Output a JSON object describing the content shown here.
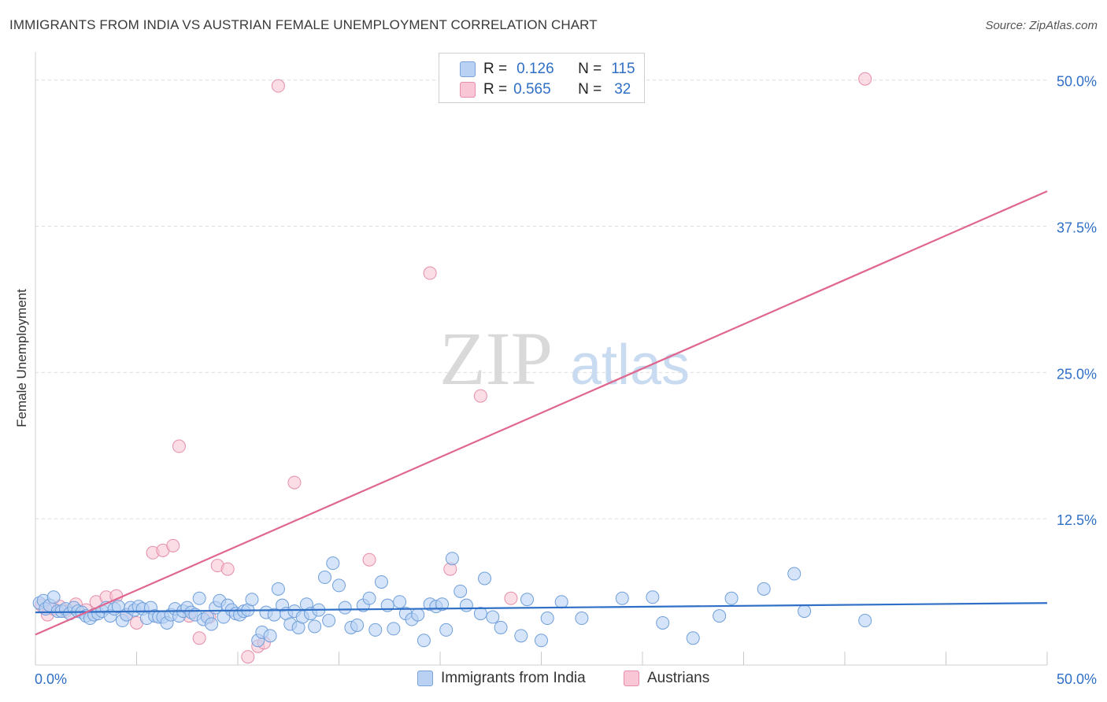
{
  "title": "IMMIGRANTS FROM INDIA VS AUSTRIAN FEMALE UNEMPLOYMENT CORRELATION CHART",
  "source": "Source: ZipAtlas.com",
  "watermark": {
    "zip": "ZIP",
    "atlas": "atlas"
  },
  "legend": {
    "rows": [
      {
        "r_label": "R =",
        "r_value": "0.126",
        "n_label": "N =",
        "n_value": "115"
      },
      {
        "r_label": "R =",
        "r_value": "0.565",
        "n_label": "N =",
        "n_value": "32"
      }
    ]
  },
  "bottom_legend": {
    "series_a": "Immigrants from India",
    "series_b": "Austrians"
  },
  "colors": {
    "blue_fill": "#b9d2f3",
    "blue_stroke": "#6f9fda",
    "blue_line": "#2f6fc6",
    "pink_fill": "#f8c6d4",
    "pink_stroke": "#e58ea9",
    "pink_line": "#e0668f",
    "tick_text": "#2f6fc6"
  },
  "chart_data": {
    "type": "scatter",
    "title": "IMMIGRANTS FROM INDIA VS AUSTRIAN FEMALE UNEMPLOYMENT CORRELATION CHART",
    "xlabel": "",
    "ylabel": "Female Unemployment",
    "xlim": [
      0,
      50
    ],
    "ylim": [
      0,
      52
    ],
    "x_tick_labels": [
      {
        "value": 0,
        "label": "0.0%"
      },
      {
        "value": 50,
        "label": "50.0%"
      }
    ],
    "y_tick_labels": [
      {
        "value": 12.5,
        "label": "12.5%"
      },
      {
        "value": 25,
        "label": "25.0%"
      },
      {
        "value": 37.5,
        "label": "37.5%"
      },
      {
        "value": 50,
        "label": "50.0%"
      }
    ],
    "series": [
      {
        "name": "Immigrants from India",
        "R": 0.126,
        "N": 115,
        "trend": {
          "x": [
            0,
            50
          ],
          "y": [
            4.5,
            5.3
          ]
        },
        "points": [
          [
            0.2,
            5.3
          ],
          [
            0.4,
            5.5
          ],
          [
            0.5,
            4.8
          ],
          [
            0.7,
            5.1
          ],
          [
            0.9,
            5.8
          ],
          [
            1.1,
            4.6
          ],
          [
            1.3,
            4.6
          ],
          [
            1.5,
            4.8
          ],
          [
            1.7,
            4.4
          ],
          [
            1.9,
            4.9
          ],
          [
            2.1,
            4.6
          ],
          [
            2.3,
            4.5
          ],
          [
            2.5,
            4.2
          ],
          [
            2.7,
            4.0
          ],
          [
            2.9,
            4.3
          ],
          [
            3.1,
            4.4
          ],
          [
            3.3,
            4.6
          ],
          [
            3.5,
            4.9
          ],
          [
            3.7,
            4.2
          ],
          [
            3.9,
            4.8
          ],
          [
            4.1,
            5.0
          ],
          [
            4.3,
            3.8
          ],
          [
            4.5,
            4.3
          ],
          [
            4.7,
            4.9
          ],
          [
            4.9,
            4.7
          ],
          [
            5.1,
            5.0
          ],
          [
            5.3,
            4.8
          ],
          [
            5.5,
            4.0
          ],
          [
            5.7,
            4.9
          ],
          [
            5.9,
            4.2
          ],
          [
            6.1,
            4.1
          ],
          [
            6.3,
            4.1
          ],
          [
            6.5,
            3.6
          ],
          [
            6.7,
            4.3
          ],
          [
            6.9,
            4.8
          ],
          [
            7.1,
            4.2
          ],
          [
            7.3,
            4.6
          ],
          [
            7.5,
            4.9
          ],
          [
            7.7,
            4.5
          ],
          [
            7.9,
            4.3
          ],
          [
            8.1,
            5.7
          ],
          [
            8.3,
            3.9
          ],
          [
            8.5,
            4.1
          ],
          [
            8.7,
            3.5
          ],
          [
            8.9,
            4.9
          ],
          [
            9.1,
            5.5
          ],
          [
            9.3,
            4.1
          ],
          [
            9.5,
            5.1
          ],
          [
            9.7,
            4.7
          ],
          [
            9.9,
            4.4
          ],
          [
            10.1,
            4.3
          ],
          [
            10.3,
            4.6
          ],
          [
            10.5,
            4.7
          ],
          [
            10.7,
            5.6
          ],
          [
            11.0,
            2.1
          ],
          [
            11.2,
            2.8
          ],
          [
            11.4,
            4.5
          ],
          [
            11.6,
            2.5
          ],
          [
            11.8,
            4.3
          ],
          [
            12.0,
            6.5
          ],
          [
            12.2,
            5.1
          ],
          [
            12.4,
            4.4
          ],
          [
            12.6,
            3.5
          ],
          [
            12.8,
            4.6
          ],
          [
            13.0,
            3.2
          ],
          [
            13.2,
            4.1
          ],
          [
            13.4,
            5.2
          ],
          [
            13.6,
            4.4
          ],
          [
            13.8,
            3.3
          ],
          [
            14.0,
            4.7
          ],
          [
            14.3,
            7.5
          ],
          [
            14.5,
            3.8
          ],
          [
            14.7,
            8.7
          ],
          [
            15.0,
            6.8
          ],
          [
            15.3,
            4.9
          ],
          [
            15.6,
            3.2
          ],
          [
            15.9,
            3.4
          ],
          [
            16.2,
            5.1
          ],
          [
            16.5,
            5.7
          ],
          [
            16.8,
            3.0
          ],
          [
            17.1,
            7.1
          ],
          [
            17.4,
            5.1
          ],
          [
            17.7,
            3.1
          ],
          [
            18.0,
            5.4
          ],
          [
            18.3,
            4.4
          ],
          [
            18.6,
            3.9
          ],
          [
            18.9,
            4.3
          ],
          [
            19.2,
            2.1
          ],
          [
            19.5,
            5.2
          ],
          [
            19.8,
            5.0
          ],
          [
            20.1,
            5.2
          ],
          [
            20.3,
            3.0
          ],
          [
            20.6,
            9.1
          ],
          [
            21.0,
            6.3
          ],
          [
            21.3,
            5.1
          ],
          [
            22.0,
            4.4
          ],
          [
            22.2,
            7.4
          ],
          [
            22.6,
            4.1
          ],
          [
            23.0,
            3.2
          ],
          [
            24.0,
            2.5
          ],
          [
            24.3,
            5.6
          ],
          [
            25.0,
            2.1
          ],
          [
            25.3,
            4.0
          ],
          [
            26.0,
            5.4
          ],
          [
            27.0,
            4.0
          ],
          [
            29.0,
            5.7
          ],
          [
            30.5,
            5.8
          ],
          [
            31.0,
            3.6
          ],
          [
            32.5,
            2.3
          ],
          [
            33.8,
            4.2
          ],
          [
            34.4,
            5.7
          ],
          [
            36.0,
            6.5
          ],
          [
            37.5,
            7.8
          ],
          [
            38.0,
            4.6
          ],
          [
            41.0,
            3.8
          ]
        ]
      },
      {
        "name": "Austrians",
        "R": 0.565,
        "N": 32,
        "trend": {
          "x": [
            0,
            50
          ],
          "y": [
            2.6,
            40.5
          ]
        },
        "points": [
          [
            0.3,
            5.1
          ],
          [
            0.6,
            4.3
          ],
          [
            0.9,
            4.8
          ],
          [
            1.2,
            5.0
          ],
          [
            1.5,
            4.6
          ],
          [
            2.0,
            5.2
          ],
          [
            2.5,
            4.7
          ],
          [
            3.0,
            5.4
          ],
          [
            3.5,
            5.8
          ],
          [
            4.0,
            5.9
          ],
          [
            4.5,
            4.3
          ],
          [
            5.0,
            3.6
          ],
          [
            5.8,
            9.6
          ],
          [
            6.3,
            9.8
          ],
          [
            6.8,
            10.2
          ],
          [
            7.1,
            18.7
          ],
          [
            7.6,
            4.2
          ],
          [
            8.1,
            2.3
          ],
          [
            8.6,
            4.1
          ],
          [
            9.0,
            8.5
          ],
          [
            9.5,
            8.2
          ],
          [
            10.5,
            0.7
          ],
          [
            11.0,
            1.6
          ],
          [
            11.3,
            1.9
          ],
          [
            12.0,
            49.5
          ],
          [
            12.8,
            15.6
          ],
          [
            16.5,
            9.0
          ],
          [
            19.5,
            33.5
          ],
          [
            20.5,
            8.2
          ],
          [
            22.0,
            23.0
          ],
          [
            23.5,
            5.7
          ],
          [
            41.0,
            50.1
          ]
        ]
      }
    ]
  }
}
